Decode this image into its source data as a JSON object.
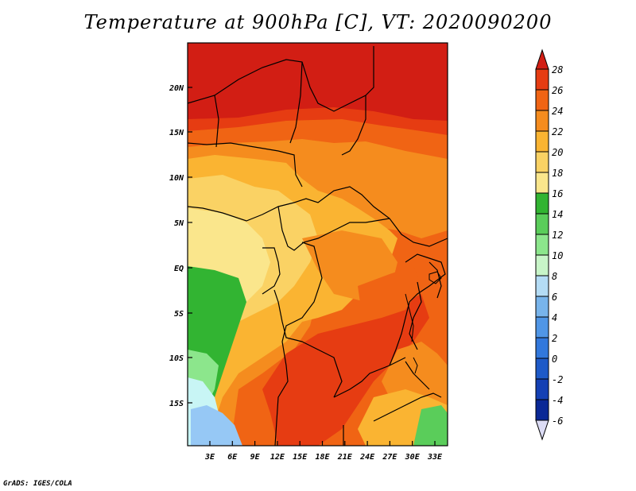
{
  "title": "Temperature at 900hPa [C], VT: 2020090200",
  "footer": "GrADS: IGES/COLA",
  "axes": {
    "lat_labels": [
      "20N",
      "15N",
      "10N",
      "5N",
      "EQ",
      "5S",
      "10S",
      "15S"
    ],
    "lon_labels": [
      "3E",
      "6E",
      "9E",
      "12E",
      "15E",
      "18E",
      "21E",
      "24E",
      "27E",
      "30E",
      "33E"
    ]
  },
  "colorbar": {
    "labels": [
      "28",
      "26",
      "24",
      "22",
      "20",
      "18",
      "16",
      "14",
      "12",
      "10",
      "8",
      "6",
      "4",
      "2",
      "0",
      "-2",
      "-4",
      "-6"
    ],
    "colors": [
      "#d21e14",
      "#e63c12",
      "#f06414",
      "#f58c1e",
      "#fab432",
      "#fad264",
      "#fae68c",
      "#32b432",
      "#5acd5a",
      "#8ce68c",
      "#c8f5c8",
      "#b4dcf5",
      "#78b4eb",
      "#5096e6",
      "#3278dc",
      "#1e5ac8",
      "#1440b4",
      "#0a2896",
      "#08126e"
    ],
    "over_color": "#d21e14",
    "under_color": "#dcdcf5"
  },
  "colors": {
    "hot": "#d21e14",
    "warm_orange": "#f06414",
    "orange": "#f58c1e",
    "light_orange": "#fab432",
    "yellow": "#fad264",
    "pale_yellow": "#fae68c",
    "green": "#32b432",
    "light_green": "#8ce68c",
    "pale_blue": "#c8f5f5",
    "blue": "#96c8f5"
  }
}
